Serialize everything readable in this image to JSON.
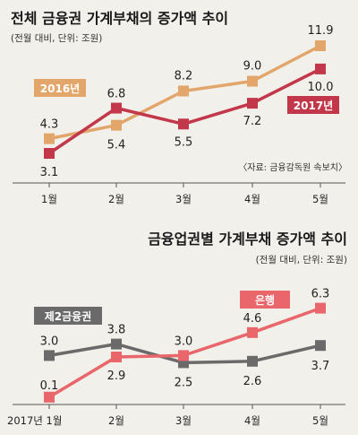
{
  "chart_data": [
    {
      "type": "line",
      "title": "전체 금융권 가계부채의 증가액 추이",
      "subtitle": "(전월 대비, 단위: 조원)",
      "source": "〈자료: 금융감독원 속보치〉",
      "categories": [
        "1월",
        "2월",
        "3월",
        "4월",
        "5월"
      ],
      "ylim": [
        2,
        13
      ],
      "series": [
        {
          "name": "2016년",
          "color": "#e3a66a",
          "values": [
            4.3,
            5.4,
            8.2,
            9.0,
            11.9
          ]
        },
        {
          "name": "2017년",
          "color": "#c2374a",
          "values": [
            3.1,
            6.8,
            5.5,
            7.2,
            10.0
          ]
        }
      ]
    },
    {
      "type": "line",
      "title": "금융업권별 가계부채 증가액 추이",
      "subtitle": "(전월 대비, 단위: 조원)",
      "categories": [
        "2017년 1월",
        "2월",
        "3월",
        "4월",
        "5월"
      ],
      "ylim": [
        -0.6,
        7.4
      ],
      "series": [
        {
          "name": "제2금융권",
          "color": "#6a6a6a",
          "values": [
            3.0,
            3.8,
            2.5,
            2.6,
            3.7
          ]
        },
        {
          "name": "은행",
          "color": "#e9666a",
          "values": [
            0.1,
            2.9,
            3.0,
            4.6,
            6.3
          ]
        }
      ]
    }
  ]
}
